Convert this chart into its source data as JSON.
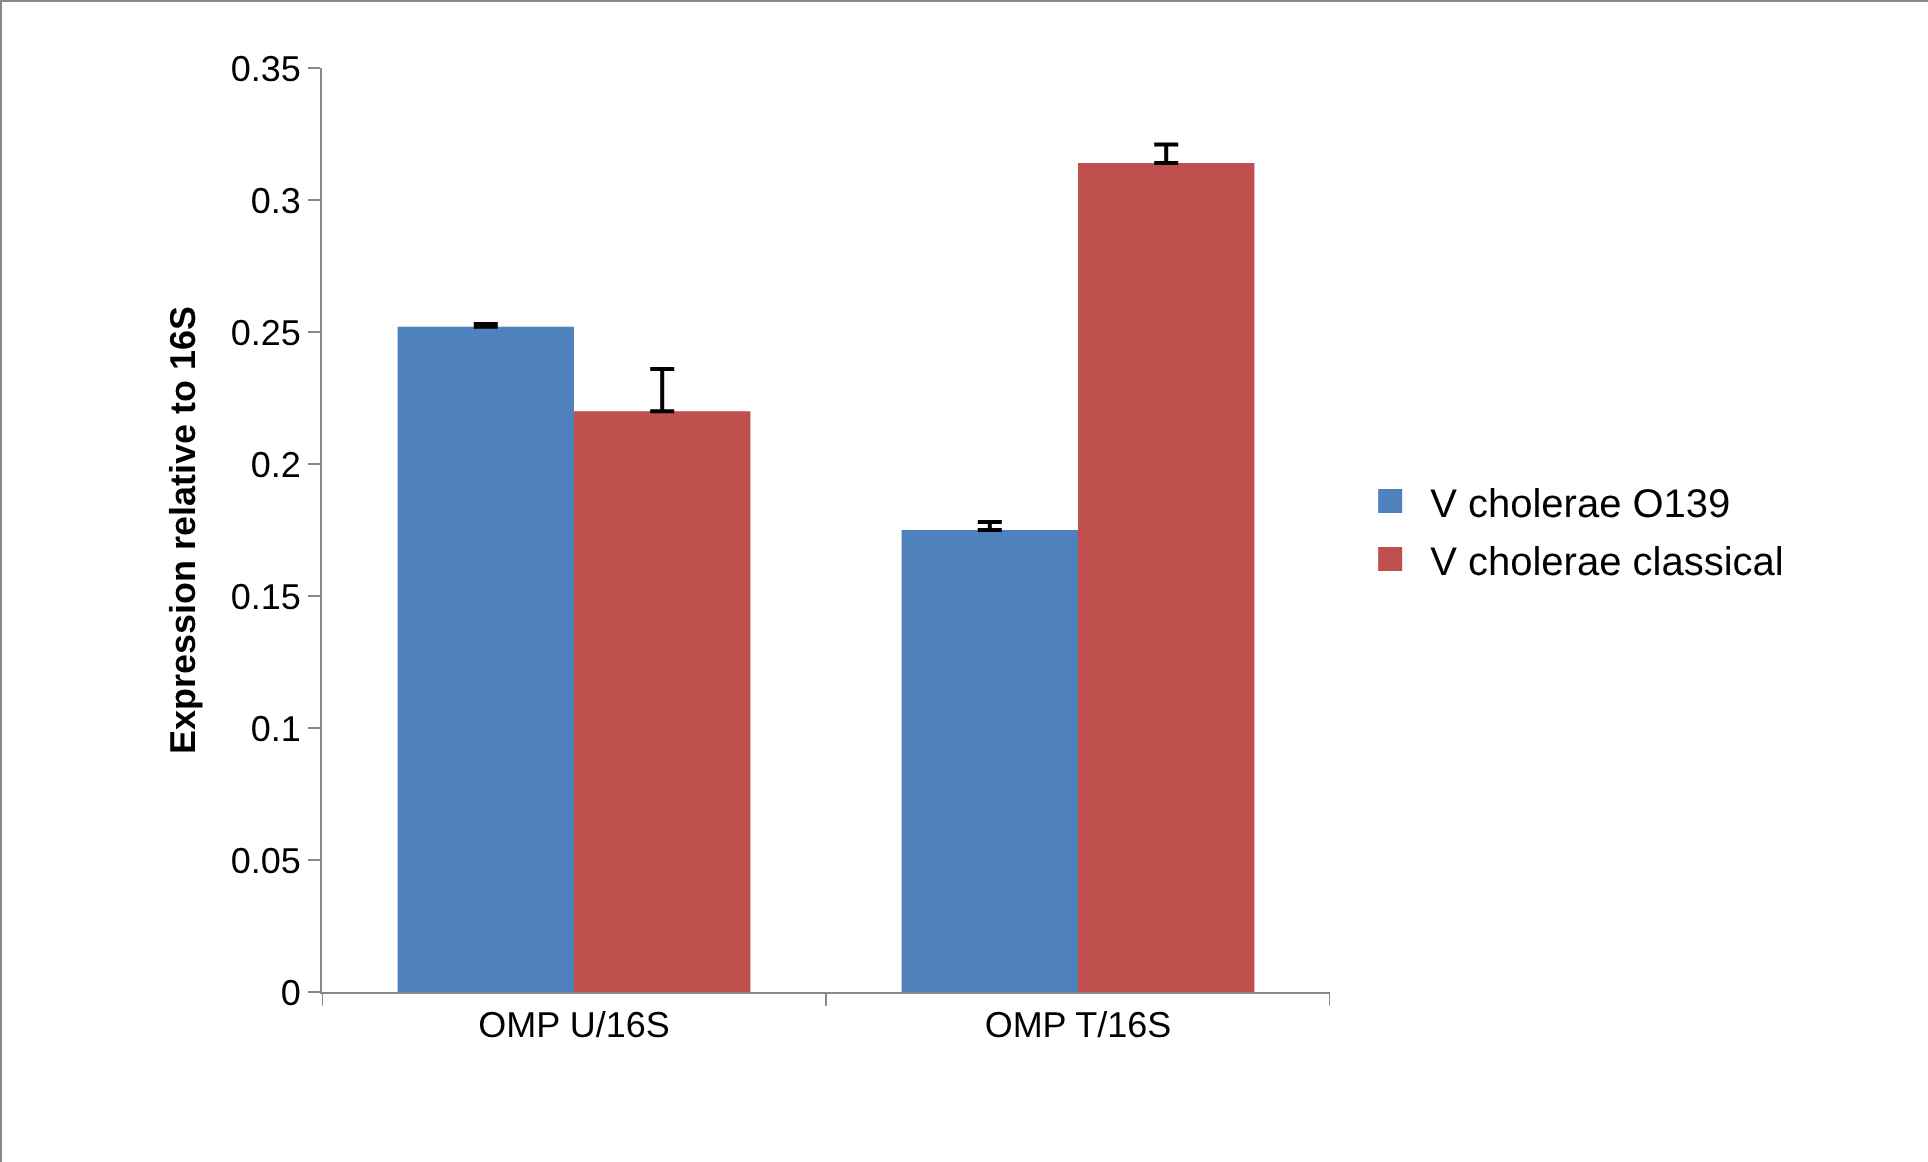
{
  "chart_data": {
    "type": "bar",
    "ylabel": "Expression relative to 16S",
    "categories": [
      "OMP U/16S",
      "OMP T/16S"
    ],
    "series": [
      {
        "name": "V cholerae O139",
        "color": "#4f81bd",
        "values": [
          0.252,
          0.175
        ],
        "errors": [
          [
            0.252,
            0.253
          ],
          [
            0.175,
            0.178
          ]
        ]
      },
      {
        "name": "V cholerae classical",
        "color": "#c0504d",
        "values": [
          0.22,
          0.314
        ],
        "errors": [
          [
            0.22,
            0.236
          ],
          [
            0.314,
            0.321
          ]
        ]
      }
    ],
    "ylim": [
      0,
      0.35
    ],
    "yticks": [
      {
        "value": 0,
        "label": "0"
      },
      0.05,
      0.1,
      0.15,
      0.2,
      0.25,
      0.3,
      0.35
    ],
    "grid": false,
    "legend": "right"
  }
}
